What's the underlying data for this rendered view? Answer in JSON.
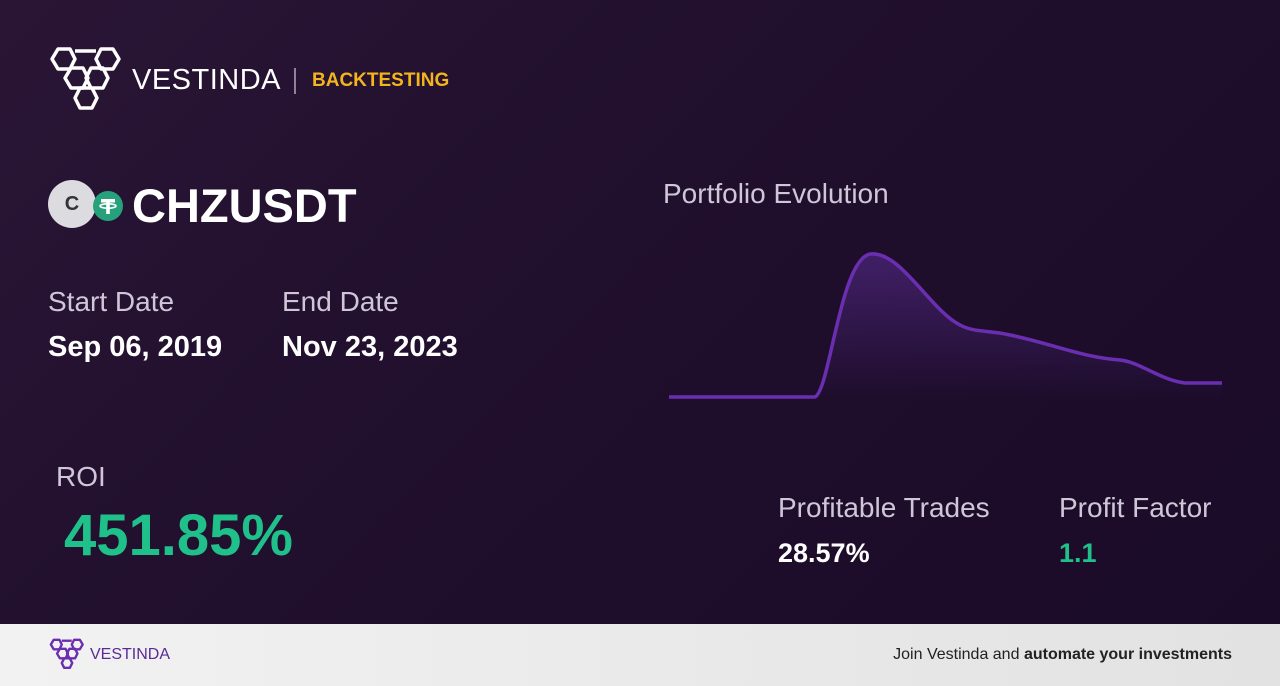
{
  "header": {
    "brand": "VESTINDA",
    "section": "BACKTESTING"
  },
  "pair": {
    "icon_letter": "C",
    "symbol": "CHZUSDT"
  },
  "dates": {
    "start_label": "Start Date",
    "start": "Sep 06, 2019",
    "end_label": "End Date",
    "end": "Nov 23, 2023"
  },
  "chart": {
    "title": "Portfolio Evolution"
  },
  "stats": {
    "roi_label": "ROI",
    "roi": "451.85%",
    "profitable_trades_label": "Profitable Trades",
    "profitable_trades": "28.57%",
    "profit_factor_label": "Profit Factor",
    "profit_factor": "1.1"
  },
  "footer": {
    "brand": "VESTINDA",
    "cta_prefix": "Join Vestinda and",
    "cta_bold": "automate your investments"
  }
}
